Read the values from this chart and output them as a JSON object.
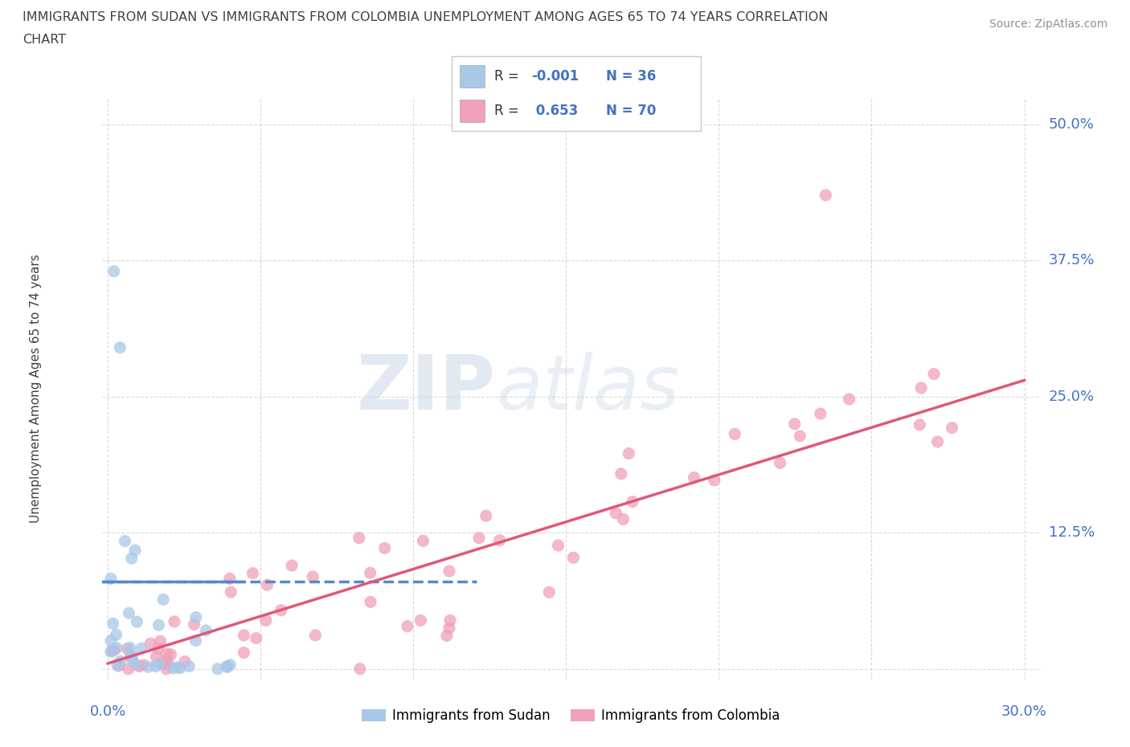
{
  "title_line1": "IMMIGRANTS FROM SUDAN VS IMMIGRANTS FROM COLOMBIA UNEMPLOYMENT AMONG AGES 65 TO 74 YEARS CORRELATION",
  "title_line2": "CHART",
  "source_text": "Source: ZipAtlas.com",
  "ylabel": "Unemployment Among Ages 65 to 74 years",
  "xlim": [
    -0.002,
    0.305
  ],
  "ylim": [
    -0.01,
    0.525
  ],
  "x_ticks": [
    0.0,
    0.05,
    0.1,
    0.15,
    0.2,
    0.25,
    0.3
  ],
  "y_ticks": [
    0.0,
    0.125,
    0.25,
    0.375,
    0.5
  ],
  "y_tick_labels": [
    "",
    "12.5%",
    "25.0%",
    "37.5%",
    "50.0%"
  ],
  "watermark_zip": "ZIP",
  "watermark_atlas": "atlas",
  "legend_label1": "Immigrants from Sudan",
  "legend_label2": "Immigrants from Colombia",
  "color_sudan": "#a8c8e8",
  "color_colombia": "#f0a0b8",
  "color_sudan_line": "#5588cc",
  "color_colombia_line": "#e05878",
  "grid_color": "#c8c8d8",
  "bg_color": "#ffffff",
  "title_color": "#404040",
  "tick_label_color": "#4472c4",
  "source_color": "#909090",
  "ylabel_color": "#404040"
}
